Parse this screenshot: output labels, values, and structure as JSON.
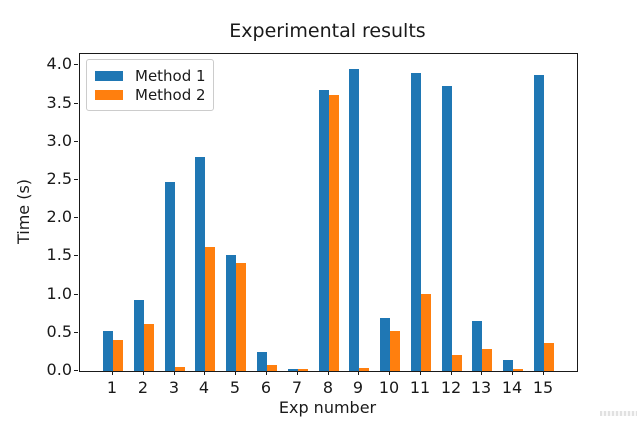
{
  "chart_data": {
    "type": "bar",
    "title": "Experimental results",
    "xlabel": "Exp number",
    "ylabel": "Time (s)",
    "categories": [
      "1",
      "2",
      "3",
      "4",
      "5",
      "6",
      "7",
      "8",
      "9",
      "10",
      "11",
      "12",
      "13",
      "14",
      "15"
    ],
    "series": [
      {
        "name": "Method 1",
        "color": "#1f77b4",
        "values": [
          0.52,
          0.93,
          2.47,
          2.8,
          1.52,
          0.25,
          0.02,
          3.68,
          3.96,
          0.7,
          3.9,
          3.73,
          0.65,
          0.14,
          3.88
        ]
      },
      {
        "name": "Method 2",
        "color": "#ff7f0e",
        "values": [
          0.41,
          0.61,
          0.05,
          1.62,
          1.41,
          0.08,
          0.02,
          3.61,
          0.04,
          0.53,
          1.01,
          0.21,
          0.29,
          0.03,
          0.37
        ]
      }
    ],
    "ylim": [
      0,
      4.15
    ],
    "yticks": [
      0,
      0.5,
      1,
      1.5,
      2,
      2.5,
      3,
      3.5,
      4
    ],
    "ytick_labels": [
      "0.0",
      "0.5",
      "1.0",
      "1.5",
      "2.0",
      "2.5",
      "3.0",
      "3.5",
      "4.0"
    ],
    "grid": false,
    "legend_position": "upper left"
  }
}
